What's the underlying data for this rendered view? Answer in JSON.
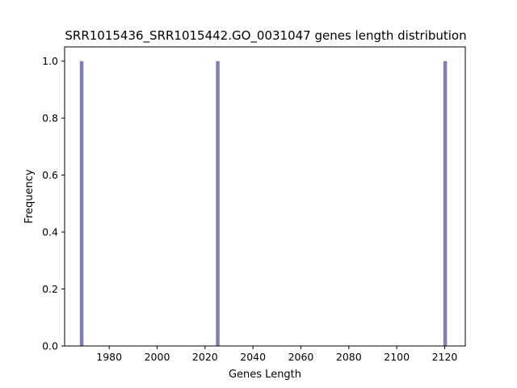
{
  "chart_data": {
    "type": "bar",
    "title": "SRR1015436_SRR1015442.GO_0031047 genes length distribution",
    "xlabel": "Genes Length",
    "ylabel": "Frequency",
    "xlim": [
      1961.4,
      2128.6
    ],
    "ylim": [
      0,
      1.05
    ],
    "xticks": [
      1980,
      2000,
      2020,
      2040,
      2060,
      2080,
      2100,
      2120
    ],
    "yticks": [
      "0.0",
      "0.2",
      "0.4",
      "0.6",
      "0.8",
      "1.0"
    ],
    "bar_width": 1.52,
    "bar_color": "#8080b3",
    "bars": [
      {
        "x": 1968.5,
        "value": 1
      },
      {
        "x": 2025.3,
        "value": 1
      },
      {
        "x": 2120.2,
        "value": 1
      }
    ],
    "grid": false,
    "legend": "none"
  }
}
